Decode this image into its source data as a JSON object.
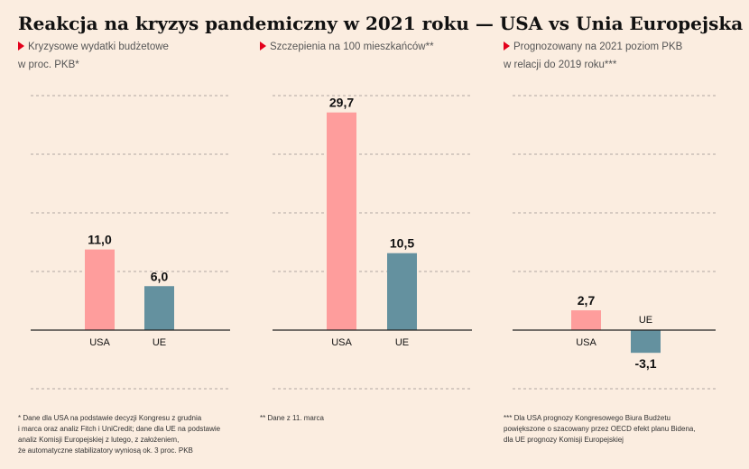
{
  "title": "Reakcja na kryzys pandemiczny w 2021 roku — USA vs Unia Europejska",
  "colors": {
    "usa": "#fe9d9c",
    "ue": "#64919f",
    "accent": "#e3001b",
    "grid": "#b0a8a2"
  },
  "chart_data": [
    {
      "type": "bar",
      "subtitle_line1": "Kryzysowe wydatki budżetowe",
      "subtitle_line2": "w proc. PKB*",
      "categories": [
        "USA",
        "UE"
      ],
      "values": [
        11.0,
        6.0
      ],
      "value_labels": [
        "11,0",
        "6,0"
      ],
      "ylim": [
        -6,
        33
      ],
      "grid": true,
      "footnote": "* Dane dla USA na podstawie decyzji Kongresu z grudnia\ni marca oraz analiz Fitch i UniCredit; dane dla UE na podstawie\nanaliz Komisji Europejskiej z lutego, z założeniem,\nże automatyczne stabilizatory wyniosą ok. 3 proc. PKB"
    },
    {
      "type": "bar",
      "subtitle_line1": "Szczepienia na 100 mieszkańców**",
      "subtitle_line2": "",
      "categories": [
        "USA",
        "UE"
      ],
      "values": [
        29.7,
        10.5
      ],
      "value_labels": [
        "29,7",
        "10,5"
      ],
      "ylim": [
        -6,
        33
      ],
      "grid": true,
      "footnote": "** Dane z 11. marca"
    },
    {
      "type": "bar",
      "subtitle_line1": "Prognozowany na 2021 poziom PKB",
      "subtitle_line2": "w relacji do 2019 roku***",
      "categories": [
        "USA",
        "UE"
      ],
      "values": [
        2.7,
        -3.1
      ],
      "value_labels": [
        "2,7",
        "-3,1"
      ],
      "ylim": [
        -6,
        33
      ],
      "grid": true,
      "footnote": "*** Dla USA prognozy Kongresowego Biura Budżetu\npowiększone o szacowany przez OECD efekt planu Bidena,\ndla UE prognozy Komisji Europejskiej"
    }
  ]
}
